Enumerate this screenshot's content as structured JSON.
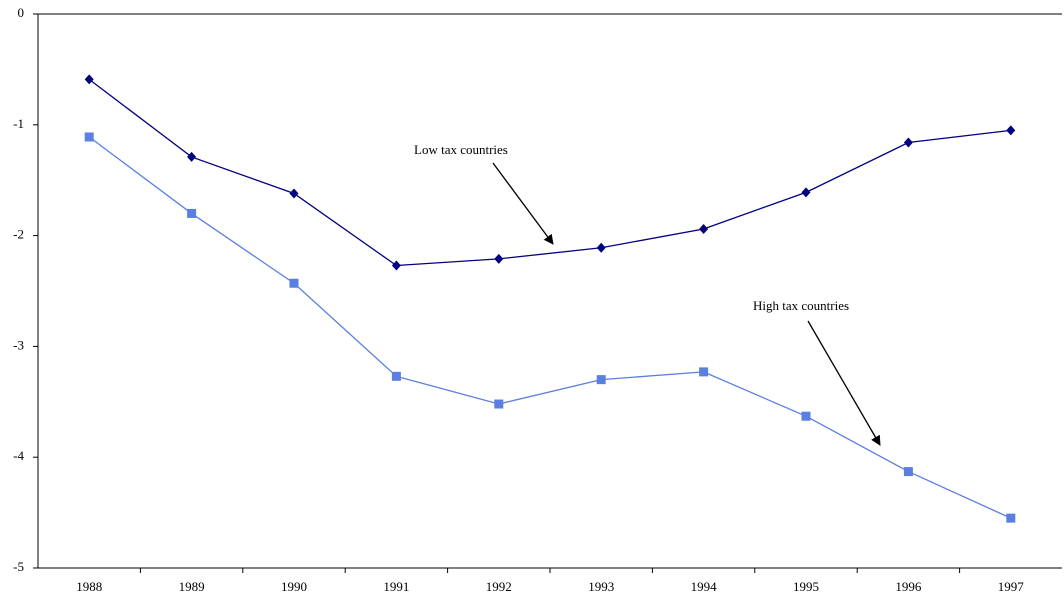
{
  "chart_data": {
    "type": "line",
    "categories": [
      "1988",
      "1989",
      "1990",
      "1991",
      "1992",
      "1993",
      "1994",
      "1995",
      "1996",
      "1997"
    ],
    "series": [
      {
        "color": "#000080",
        "marker": "diamond",
        "values": [
          -0.59,
          -1.29,
          -1.62,
          -2.27,
          -2.21,
          -2.11,
          -1.94,
          -1.61,
          -1.16,
          -1.05
        ]
      },
      {
        "color": "#5b7fe0",
        "marker": "square",
        "values": [
          -1.11,
          -1.8,
          -2.43,
          -3.27,
          -3.52,
          -3.3,
          -3.23,
          -3.63,
          -4.13,
          -4.55
        ]
      }
    ],
    "annotations": [
      "Low tax countries",
      "High tax countries"
    ],
    "ylim": [
      -5,
      0
    ],
    "yticks": [
      0,
      -1,
      -2,
      -3,
      -4,
      -5
    ]
  }
}
